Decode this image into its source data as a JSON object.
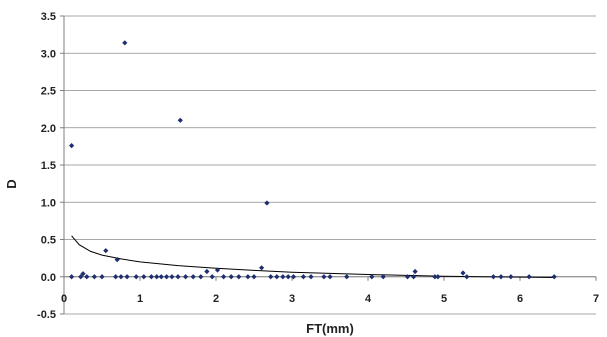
{
  "chart_data": {
    "type": "scatter",
    "title": "",
    "xlabel": "FT(mm)",
    "ylabel": "D",
    "xlim": [
      0,
      7
    ],
    "ylim": [
      -0.5,
      3.5
    ],
    "x_ticks": [
      0,
      1,
      2,
      3,
      4,
      5,
      6,
      7
    ],
    "y_ticks": [
      -0.5,
      0.0,
      0.5,
      1.0,
      1.5,
      2.0,
      2.5,
      3.0,
      3.5
    ],
    "x_tick_labels": [
      "0",
      "1",
      "2",
      "3",
      "4",
      "5",
      "6",
      "7"
    ],
    "y_tick_labels": [
      "-0.5",
      "0.0",
      "0.5",
      "1.0",
      "1.5",
      "2.0",
      "2.5",
      "3.0",
      "3.5"
    ],
    "grid": "horizontal",
    "legend": "none",
    "series": [
      {
        "color": "#1f2e6e",
        "marker": "diamond",
        "points": [
          [
            0.1,
            1.76
          ],
          [
            0.8,
            3.14
          ],
          [
            1.53,
            2.1
          ],
          [
            2.67,
            0.99
          ],
          [
            0.55,
            0.35
          ],
          [
            0.7,
            0.23
          ],
          [
            2.6,
            0.12
          ],
          [
            1.88,
            0.07
          ],
          [
            2.02,
            0.09
          ],
          [
            4.62,
            0.07
          ],
          [
            5.25,
            0.05
          ],
          [
            0.25,
            0.04
          ],
          [
            0.1,
            0.0
          ],
          [
            0.22,
            0.0
          ],
          [
            0.3,
            0.0
          ],
          [
            0.4,
            0.0
          ],
          [
            0.5,
            0.0
          ],
          [
            0.68,
            0.0
          ],
          [
            0.75,
            0.0
          ],
          [
            0.83,
            0.0
          ],
          [
            0.95,
            0.0
          ],
          [
            1.05,
            0.0
          ],
          [
            1.15,
            0.0
          ],
          [
            1.22,
            0.0
          ],
          [
            1.28,
            0.0
          ],
          [
            1.35,
            0.0
          ],
          [
            1.42,
            0.0
          ],
          [
            1.5,
            0.0
          ],
          [
            1.6,
            0.0
          ],
          [
            1.7,
            0.0
          ],
          [
            1.8,
            0.0
          ],
          [
            1.95,
            0.0
          ],
          [
            2.1,
            0.0
          ],
          [
            2.2,
            0.0
          ],
          [
            2.3,
            0.0
          ],
          [
            2.42,
            0.0
          ],
          [
            2.5,
            0.0
          ],
          [
            2.72,
            0.0
          ],
          [
            2.8,
            0.0
          ],
          [
            2.88,
            0.0
          ],
          [
            2.95,
            0.0
          ],
          [
            3.02,
            0.0
          ],
          [
            3.15,
            0.0
          ],
          [
            3.25,
            0.0
          ],
          [
            3.42,
            0.0
          ],
          [
            3.5,
            0.0
          ],
          [
            3.72,
            0.0
          ],
          [
            4.05,
            0.0
          ],
          [
            4.2,
            0.0
          ],
          [
            4.52,
            0.0
          ],
          [
            4.6,
            0.0
          ],
          [
            4.88,
            0.0
          ],
          [
            4.92,
            0.0
          ],
          [
            5.3,
            0.0
          ],
          [
            5.65,
            0.0
          ],
          [
            5.75,
            0.0
          ],
          [
            5.88,
            0.0
          ],
          [
            6.12,
            0.0
          ],
          [
            6.45,
            0.0
          ]
        ]
      }
    ],
    "trendline": {
      "type": "power",
      "color": "#000000",
      "points": [
        [
          0.1,
          0.55
        ],
        [
          0.2,
          0.43
        ],
        [
          0.35,
          0.34
        ],
        [
          0.5,
          0.29
        ],
        [
          0.75,
          0.24
        ],
        [
          1.0,
          0.2
        ],
        [
          1.5,
          0.15
        ],
        [
          2.0,
          0.115
        ],
        [
          2.5,
          0.085
        ],
        [
          3.0,
          0.06
        ],
        [
          3.5,
          0.045
        ],
        [
          4.0,
          0.03
        ],
        [
          4.5,
          0.018
        ],
        [
          5.0,
          0.008
        ],
        [
          5.5,
          0.0
        ],
        [
          6.0,
          -0.005
        ],
        [
          6.45,
          -0.01
        ]
      ]
    }
  }
}
